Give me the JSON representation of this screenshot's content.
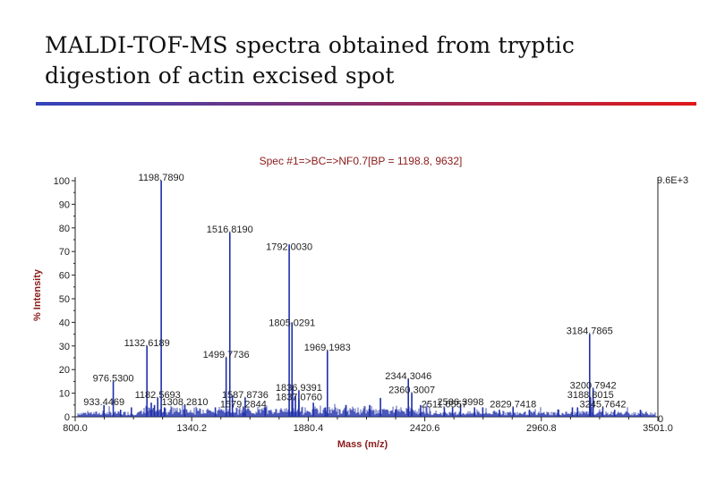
{
  "slide": {
    "title_line1": "MALDI-TOF-MS spectra obtained from tryptic",
    "title_line2": "digestion of actin excised spot",
    "rule_colors": [
      "#3344bb",
      "#e01818"
    ]
  },
  "chart_data": {
    "type": "line",
    "subtype": "mass-spectrum",
    "title": "Spec #1=>BC=>NF0.7[BP = 1198.8, 9632]",
    "xlabel": "Mass (m/z)",
    "ylabel": "% Intensity",
    "xlim": [
      800.0,
      3501.0
    ],
    "ylim": [
      0,
      100
    ],
    "x_ticks": [
      "800.0",
      "1340.2",
      "1880.4",
      "2420.6",
      "2960.8",
      "3501.0"
    ],
    "y_ticks": [
      0,
      10,
      20,
      30,
      40,
      50,
      60,
      70,
      80,
      90,
      100
    ],
    "max_intensity_label": "9.6E+3",
    "right_zero_label": "0",
    "colors": {
      "trace": "#1f2fa8",
      "annotation": "#222222",
      "axis_title": "#8b1a1a",
      "axes": "#222222"
    },
    "peaks": [
      {
        "mz": 1198.789,
        "intensity": 100
      },
      {
        "mz": 1516.819,
        "intensity": 78
      },
      {
        "mz": 1792.003,
        "intensity": 73
      },
      {
        "mz": 1805.0291,
        "intensity": 40
      },
      {
        "mz": 3184.7865,
        "intensity": 35
      },
      {
        "mz": 1132.6189,
        "intensity": 30
      },
      {
        "mz": 1499.7736,
        "intensity": 25
      },
      {
        "mz": 1969.1983,
        "intensity": 28
      },
      {
        "mz": 2344.3046,
        "intensity": 16
      },
      {
        "mz": 976.53,
        "intensity": 15
      },
      {
        "mz": 3200.7942,
        "intensity": 12
      },
      {
        "mz": 1836.9391,
        "intensity": 11
      },
      {
        "mz": 2360.3007,
        "intensity": 10
      },
      {
        "mz": 1182.5693,
        "intensity": 8
      },
      {
        "mz": 1587.8736,
        "intensity": 8
      },
      {
        "mz": 3188.8015,
        "intensity": 8
      },
      {
        "mz": 1837.076,
        "intensity": 7
      },
      {
        "mz": 2586.3998,
        "intensity": 5
      },
      {
        "mz": 2829.7418,
        "intensity": 4
      },
      {
        "mz": 3245.7642,
        "intensity": 4
      },
      {
        "mz": 933.4469,
        "intensity": 5
      },
      {
        "mz": 1308.281,
        "intensity": 5
      },
      {
        "mz": 1579.2844,
        "intensity": 4
      },
      {
        "mz": 2511.0557,
        "intensity": 4
      },
      {
        "mz": 1152.6,
        "intensity": 6
      },
      {
        "mz": 1167.6,
        "intensity": 5
      },
      {
        "mz": 1213.8,
        "intensity": 4
      },
      {
        "mz": 1528.8,
        "intensity": 9
      },
      {
        "mz": 1808.0,
        "intensity": 12
      },
      {
        "mz": 1820.9,
        "intensity": 9
      },
      {
        "mz": 1904.1,
        "intensity": 6
      },
      {
        "mz": 2055.0,
        "intensity": 5
      },
      {
        "mz": 2165.1,
        "intensity": 5
      },
      {
        "mz": 2215.1,
        "intensity": 8
      },
      {
        "mz": 2401.2,
        "intensity": 5
      },
      {
        "mz": 2549.3,
        "intensity": 4
      },
      {
        "mz": 2651.4,
        "intensity": 4
      },
      {
        "mz": 2689.4,
        "intensity": 4
      },
      {
        "mz": 2905.6,
        "intensity": 3
      },
      {
        "mz": 3104.7,
        "intensity": 4
      },
      {
        "mz": 3128.7,
        "intensity": 4
      },
      {
        "mz": 3300.8,
        "intensity": 3
      },
      {
        "mz": 1060.5,
        "intensity": 4
      },
      {
        "mz": 1010.5,
        "intensity": 3
      },
      {
        "mz": 1449.7,
        "intensity": 4
      },
      {
        "mz": 1680.8,
        "intensity": 4
      },
      {
        "mz": 1960.0,
        "intensity": 4
      },
      {
        "mz": 2285.1,
        "intensity": 3
      },
      {
        "mz": 2766.5,
        "intensity": 3
      },
      {
        "mz": 3040.6,
        "intensity": 3
      },
      {
        "mz": 3420.0,
        "intensity": 3
      }
    ],
    "annotations": [
      {
        "text": "1198.7890",
        "mz": 1198.789,
        "intensity": 100,
        "dx": 0,
        "dy": 0
      },
      {
        "text": "1516.8190",
        "mz": 1516.819,
        "intensity": 78,
        "dx": 0,
        "dy": 0
      },
      {
        "text": "1792.0030",
        "mz": 1792.003,
        "intensity": 73,
        "dx": 0,
        "dy": 6
      },
      {
        "text": "1805.0291",
        "mz": 1805.0291,
        "intensity": 40,
        "dx": 0,
        "dy": 4
      },
      {
        "text": "3184.7865",
        "mz": 3184.7865,
        "intensity": 35,
        "dx": 0,
        "dy": 0
      },
      {
        "text": "1132.6189",
        "mz": 1132.6189,
        "intensity": 30,
        "dx": 0,
        "dy": 0
      },
      {
        "text": "1499.7736",
        "mz": 1499.7736,
        "intensity": 25,
        "dx": 0,
        "dy": 0
      },
      {
        "text": "1969.1983",
        "mz": 1969.1983,
        "intensity": 28,
        "dx": 0,
        "dy": 0
      },
      {
        "text": "2344.3046",
        "mz": 2344.3046,
        "intensity": 16,
        "dx": 0,
        "dy": 0
      },
      {
        "text": "976.5300",
        "mz": 976.53,
        "intensity": 15,
        "dx": 0,
        "dy": 0
      },
      {
        "text": "3200.7942",
        "mz": 3200.7942,
        "intensity": 12,
        "dx": 0,
        "dy": 0
      },
      {
        "text": "1836.9391",
        "mz": 1836.9391,
        "intensity": 11,
        "dx": 0,
        "dy": 0
      },
      {
        "text": "2360.3007",
        "mz": 2360.3007,
        "intensity": 10,
        "dx": 0,
        "dy": 0
      },
      {
        "text": "1182.5693",
        "mz": 1182.5693,
        "intensity": 8,
        "dx": 0,
        "dy": 0
      },
      {
        "text": "1587.8736",
        "mz": 1587.8736,
        "intensity": 8,
        "dx": 0,
        "dy": 0
      },
      {
        "text": "3188.8015",
        "mz": 3188.8015,
        "intensity": 8,
        "dx": 0,
        "dy": 0
      },
      {
        "text": "1837.0760",
        "mz": 1837.076,
        "intensity": 7,
        "dx": 0,
        "dy": 0
      },
      {
        "text": "2586.3998",
        "mz": 2586.3998,
        "intensity": 5,
        "dx": 0,
        "dy": 0
      },
      {
        "text": "2829.7418",
        "mz": 2829.7418,
        "intensity": 4,
        "dx": 0,
        "dy": 0
      },
      {
        "text": "3245.7642",
        "mz": 3245.7642,
        "intensity": 4,
        "dx": 0,
        "dy": 0
      },
      {
        "text": "933.4469",
        "mz": 933.4469,
        "intensity": 5,
        "dx": 0,
        "dy": 0
      },
      {
        "text": "1308.2810",
        "mz": 1308.281,
        "intensity": 5,
        "dx": 0,
        "dy": 0
      },
      {
        "text": "1579.2844",
        "mz": 1579.2844,
        "intensity": 4,
        "dx": 0,
        "dy": 0
      },
      {
        "text": "2511.0557",
        "mz": 2511.0557,
        "intensity": 4,
        "dx": 0,
        "dy": 0
      }
    ]
  }
}
